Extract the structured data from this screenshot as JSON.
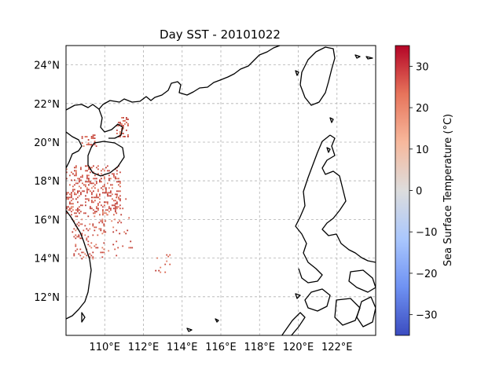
{
  "title": "Day SST - 20101022",
  "map": {
    "lon_range": [
      108,
      124
    ],
    "lat_range": [
      10,
      25
    ],
    "gridlines": true,
    "lon_ticks": [
      {
        "value": 110,
        "label": "110°E"
      },
      {
        "value": 112,
        "label": "112°E"
      },
      {
        "value": 114,
        "label": "114°E"
      },
      {
        "value": 116,
        "label": "116°E"
      },
      {
        "value": 118,
        "label": "118°E"
      },
      {
        "value": 120,
        "label": "120°E"
      },
      {
        "value": 122,
        "label": "122°E"
      }
    ],
    "lat_ticks": [
      {
        "value": 12,
        "label": "12°N"
      },
      {
        "value": 14,
        "label": "14°N"
      },
      {
        "value": 16,
        "label": "16°N"
      },
      {
        "value": 18,
        "label": "18°N"
      },
      {
        "value": 20,
        "label": "20°N"
      },
      {
        "value": 22,
        "label": "22°N"
      },
      {
        "value": 24,
        "label": "24°N"
      }
    ],
    "coastline_color": "#000000",
    "data_color": "#c5413a",
    "data_regions": [
      {
        "lon": [
          108.0,
          110.8
        ],
        "lat": [
          16.2,
          18.8
        ],
        "density": 0.28
      },
      {
        "lon": [
          108.3,
          110.0
        ],
        "lat": [
          14.0,
          16.2
        ],
        "density": 0.14
      },
      {
        "lon": [
          110.6,
          111.2
        ],
        "lat": [
          20.3,
          21.3
        ],
        "density": 0.35
      },
      {
        "lon": [
          108.8,
          109.6
        ],
        "lat": [
          19.8,
          20.4
        ],
        "density": 0.25
      },
      {
        "lon": [
          110.0,
          111.4
        ],
        "lat": [
          14.0,
          17.5
        ],
        "density": 0.05
      },
      {
        "lon": [
          112.6,
          113.4
        ],
        "lat": [
          13.2,
          14.2
        ],
        "density": 0.08
      }
    ]
  },
  "colorbar": {
    "label": "Sea Surface Temperature (°C)",
    "range": [
      -35,
      35
    ],
    "ticks": [
      {
        "value": 30,
        "label": "30"
      },
      {
        "value": 20,
        "label": "20"
      },
      {
        "value": 10,
        "label": "10"
      },
      {
        "value": 0,
        "label": "0"
      },
      {
        "value": -10,
        "label": "−10"
      },
      {
        "value": -20,
        "label": "−20"
      },
      {
        "value": -30,
        "label": "−30"
      }
    ],
    "colormap": "coolwarm",
    "colors": [
      "#3b4cc0",
      "#6f92f3",
      "#aac7fd",
      "#dddddd",
      "#f7b89c",
      "#e7745b",
      "#b40426"
    ]
  }
}
